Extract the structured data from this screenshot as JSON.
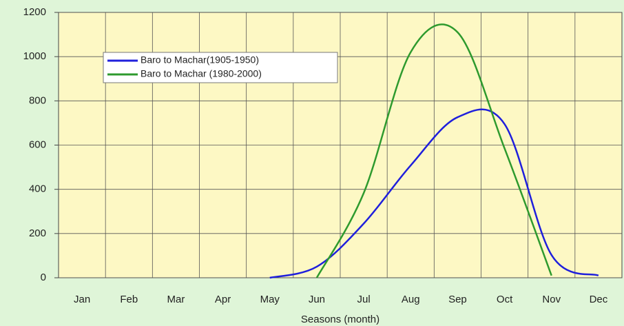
{
  "chart_data": {
    "type": "line",
    "x_label": "Seasons (month)",
    "categories": [
      "Jan",
      "Feb",
      "Mar",
      "Apr",
      "May",
      "Jun",
      "Jul",
      "Aug",
      "Sep",
      "Oct",
      "Nov",
      "Dec"
    ],
    "series": [
      {
        "name": "Baro to Machar(1905-1950)",
        "color": "#1f1fdc",
        "values": [
          null,
          null,
          null,
          null,
          0,
          50,
          245,
          508,
          726,
          695,
          103,
          10
        ]
      },
      {
        "name": "Baro to Machar (1980-2000)",
        "color": "#2e9a2e",
        "values": [
          null,
          null,
          null,
          null,
          null,
          0,
          383,
          1020,
          1110,
          585,
          10,
          null
        ]
      }
    ],
    "ylim": [
      0,
      1200
    ],
    "yticks": [
      0,
      200,
      400,
      600,
      800,
      1000,
      1200
    ],
    "grid": true
  }
}
